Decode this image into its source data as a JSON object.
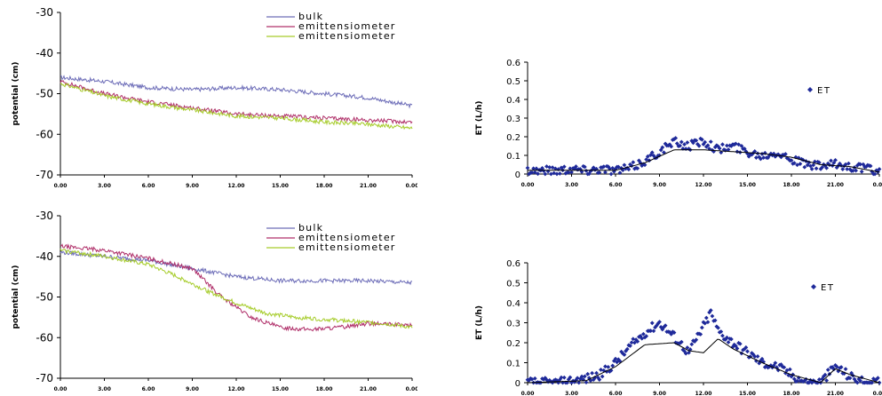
{
  "colors": {
    "bulk": "#6d6db8",
    "emitter1": "#b0306a",
    "emitter2": "#a6cc2a",
    "et_points": "#1f2a9a",
    "et_line": "#000000"
  },
  "chart_data": [
    {
      "type": "line",
      "ylabel": "potential (cm)",
      "ylim": [
        -70,
        -30
      ],
      "yticks": [
        "-30",
        "-40",
        "-50",
        "-60",
        "-70"
      ],
      "xticks": [
        "0.00",
        "3.00",
        "6.00",
        "9.00",
        "12.00",
        "15.00",
        "18.00",
        "21.00",
        "0.00"
      ],
      "legend_position": "top-center",
      "series": [
        {
          "name": "bulk",
          "color": "#6d6db8",
          "points": [
            [
              0,
              -46
            ],
            [
              3,
              -47
            ],
            [
              6,
              -48.5
            ],
            [
              9,
              -49
            ],
            [
              12,
              -48.5
            ],
            [
              15,
              -49
            ],
            [
              18,
              -50
            ],
            [
              21,
              -51
            ],
            [
              24,
              -53
            ]
          ]
        },
        {
          "name": "emittensiometer",
          "color": "#b0306a",
          "points": [
            [
              0,
              -47
            ],
            [
              3,
              -50
            ],
            [
              6,
              -52
            ],
            [
              9,
              -53.5
            ],
            [
              12,
              -55
            ],
            [
              15,
              -55.5
            ],
            [
              18,
              -56
            ],
            [
              21,
              -56.5
            ],
            [
              24,
              -57
            ]
          ]
        },
        {
          "name": "emittensiometer",
          "color": "#a6cc2a",
          "points": [
            [
              0,
              -47.5
            ],
            [
              3,
              -50.5
            ],
            [
              6,
              -52.5
            ],
            [
              9,
              -54
            ],
            [
              12,
              -55.5
            ],
            [
              15,
              -56
            ],
            [
              18,
              -57
            ],
            [
              21,
              -57.5
            ],
            [
              24,
              -58.5
            ]
          ]
        }
      ]
    },
    {
      "type": "scatter",
      "ylabel": "ET (L/h)",
      "ylim": [
        0,
        0.6
      ],
      "yticks": [
        "0.6",
        "0.5",
        "0.4",
        "0.3",
        "0.2",
        "0.1",
        "0"
      ],
      "xticks": [
        "0.00",
        "3.00",
        "6.00",
        "9.00",
        "12.00",
        "15.00",
        "18.00",
        "21.00",
        "0.00"
      ],
      "legend_position": "right",
      "series": [
        {
          "name": "ET",
          "color": "#1f2a9a",
          "points": [
            [
              0,
              0.02
            ],
            [
              2,
              0.02
            ],
            [
              3,
              0.03
            ],
            [
              4,
              0.02
            ],
            [
              5,
              0.03
            ],
            [
              6,
              0.02
            ],
            [
              7,
              0.03
            ],
            [
              8,
              0.07
            ],
            [
              9,
              0.12
            ],
            [
              10,
              0.17
            ],
            [
              11,
              0.15
            ],
            [
              12,
              0.18
            ],
            [
              13,
              0.13
            ],
            [
              14,
              0.15
            ],
            [
              15,
              0.12
            ],
            [
              16,
              0.1
            ],
            [
              17,
              0.12
            ],
            [
              18,
              0.08
            ],
            [
              19,
              0.05
            ],
            [
              20,
              0.04
            ],
            [
              21,
              0.05
            ],
            [
              22,
              0.04
            ],
            [
              23,
              0.03
            ],
            [
              24,
              0.01
            ]
          ]
        },
        {
          "name": "",
          "color": "#000000",
          "points": [
            [
              0,
              0.02
            ],
            [
              4,
              0.02
            ],
            [
              6,
              0.02
            ],
            [
              8,
              0.06
            ],
            [
              10,
              0.13
            ],
            [
              12,
              0.13
            ],
            [
              14,
              0.12
            ],
            [
              16,
              0.11
            ],
            [
              18,
              0.09
            ],
            [
              20,
              0.05
            ],
            [
              22,
              0.04
            ],
            [
              24,
              0.01
            ]
          ]
        }
      ]
    },
    {
      "type": "line",
      "ylabel": "potential (cm)",
      "ylim": [
        -70,
        -30
      ],
      "yticks": [
        "-30",
        "-40",
        "-50",
        "-60",
        "-70"
      ],
      "xticks": [
        "0.00",
        "3.00",
        "6.00",
        "9.00",
        "12.00",
        "15.00",
        "18.00",
        "21.00",
        "0.00"
      ],
      "legend_position": "top-center",
      "series": [
        {
          "name": "bulk",
          "color": "#6d6db8",
          "points": [
            [
              0,
              -39
            ],
            [
              3,
              -40
            ],
            [
              6,
              -41
            ],
            [
              9,
              -43
            ],
            [
              12,
              -45
            ],
            [
              15,
              -46
            ],
            [
              18,
              -46
            ],
            [
              21,
              -46
            ],
            [
              24,
              -46.5
            ]
          ]
        },
        {
          "name": "emittensiometer",
          "color": "#b0306a",
          "points": [
            [
              0,
              -37.5
            ],
            [
              3,
              -38.5
            ],
            [
              6,
              -40.5
            ],
            [
              9,
              -43
            ],
            [
              11,
              -50
            ],
            [
              13,
              -55
            ],
            [
              15,
              -57.5
            ],
            [
              17,
              -58
            ],
            [
              19,
              -57.5
            ],
            [
              21,
              -56.5
            ],
            [
              24,
              -57
            ]
          ]
        },
        {
          "name": "emittensiometer",
          "color": "#a6cc2a",
          "points": [
            [
              0,
              -38.5
            ],
            [
              3,
              -40
            ],
            [
              6,
              -42
            ],
            [
              8,
              -45
            ],
            [
              10,
              -48.5
            ],
            [
              12,
              -51.5
            ],
            [
              14,
              -54
            ],
            [
              16,
              -55
            ],
            [
              18,
              -55.5
            ],
            [
              20,
              -56
            ],
            [
              22,
              -56.5
            ],
            [
              24,
              -57.5
            ]
          ]
        }
      ]
    },
    {
      "type": "scatter",
      "ylabel": "ET (L/h)",
      "ylim": [
        0,
        0.6
      ],
      "yticks": [
        "0.6",
        "0.5",
        "0.4",
        "0.3",
        "0.2",
        "0.1",
        "0"
      ],
      "xticks": [
        "0.00",
        "3.00",
        "6.00",
        "9.00",
        "12.00",
        "15.00",
        "18.00",
        "21.00",
        "0.00"
      ],
      "legend_position": "right",
      "series": [
        {
          "name": "ET",
          "color": "#1f2a9a",
          "points": [
            [
              0,
              0
            ],
            [
              2,
              0
            ],
            [
              3,
              0.01
            ],
            [
              4,
              0.02
            ],
            [
              5,
              0.04
            ],
            [
              6,
              0.1
            ],
            [
              7,
              0.18
            ],
            [
              8,
              0.25
            ],
            [
              9,
              0.3
            ],
            [
              10,
              0.23
            ],
            [
              11,
              0.15
            ],
            [
              12,
              0.28
            ],
            [
              12.5,
              0.35
            ],
            [
              13,
              0.26
            ],
            [
              14,
              0.2
            ],
            [
              15,
              0.15
            ],
            [
              16,
              0.1
            ],
            [
              17,
              0.08
            ],
            [
              18,
              0.04
            ],
            [
              19,
              0
            ],
            [
              20,
              0
            ],
            [
              21,
              0.08
            ],
            [
              22,
              0.03
            ],
            [
              23,
              0
            ],
            [
              24,
              0
            ]
          ]
        },
        {
          "name": "",
          "color": "#000000",
          "points": [
            [
              0,
              0
            ],
            [
              4,
              0.01
            ],
            [
              6,
              0.08
            ],
            [
              8,
              0.19
            ],
            [
              10,
              0.2
            ],
            [
              11,
              0.16
            ],
            [
              12,
              0.15
            ],
            [
              13,
              0.22
            ],
            [
              14,
              0.17
            ],
            [
              16,
              0.1
            ],
            [
              18,
              0.04
            ],
            [
              20,
              0
            ],
            [
              21,
              0.07
            ],
            [
              22,
              0.04
            ],
            [
              24,
              0
            ]
          ]
        }
      ]
    }
  ]
}
